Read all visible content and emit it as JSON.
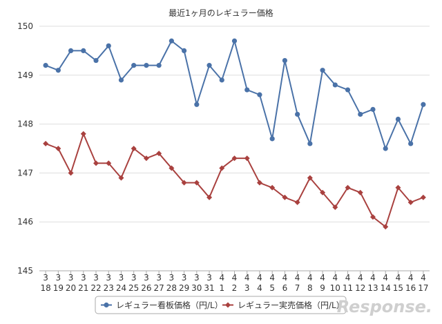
{
  "chart_data": {
    "type": "line",
    "title": "最近1ヶ月のレギュラー価格",
    "categories": [
      [
        "3",
        "18"
      ],
      [
        "3",
        "19"
      ],
      [
        "3",
        "20"
      ],
      [
        "3",
        "21"
      ],
      [
        "3",
        "22"
      ],
      [
        "3",
        "23"
      ],
      [
        "3",
        "24"
      ],
      [
        "3",
        "25"
      ],
      [
        "3",
        "26"
      ],
      [
        "3",
        "27"
      ],
      [
        "3",
        "28"
      ],
      [
        "3",
        "29"
      ],
      [
        "3",
        "30"
      ],
      [
        "3",
        "31"
      ],
      [
        "4",
        "1"
      ],
      [
        "4",
        "2"
      ],
      [
        "4",
        "3"
      ],
      [
        "4",
        "4"
      ],
      [
        "4",
        "5"
      ],
      [
        "4",
        "6"
      ],
      [
        "4",
        "7"
      ],
      [
        "4",
        "8"
      ],
      [
        "4",
        "9"
      ],
      [
        "4",
        "10"
      ],
      [
        "4",
        "11"
      ],
      [
        "4",
        "12"
      ],
      [
        "4",
        "13"
      ],
      [
        "4",
        "14"
      ],
      [
        "4",
        "15"
      ],
      [
        "4",
        "16"
      ],
      [
        "4",
        "17"
      ]
    ],
    "ylim": [
      145,
      150
    ],
    "yticks": [
      145,
      146,
      147,
      148,
      149,
      150
    ],
    "grid": true,
    "legend_position": "bottom",
    "series": [
      {
        "name": "レギュラー看板価格（円/L）",
        "color": "#4a72a8",
        "marker": "circle",
        "values": [
          149.2,
          149.1,
          149.5,
          149.5,
          149.3,
          149.6,
          148.9,
          149.2,
          149.2,
          149.2,
          149.7,
          149.5,
          148.4,
          149.2,
          148.9,
          149.7,
          148.7,
          148.6,
          147.7,
          149.3,
          148.2,
          147.6,
          149.1,
          148.8,
          148.7,
          148.2,
          148.3,
          147.5,
          148.1,
          147.6,
          148.4
        ]
      },
      {
        "name": "レギュラー実売価格（円/L）",
        "color": "#a9413f",
        "marker": "diamond",
        "values": [
          147.6,
          147.5,
          147.0,
          147.8,
          147.2,
          147.2,
          146.9,
          147.5,
          147.3,
          147.4,
          147.1,
          146.8,
          146.8,
          146.5,
          147.1,
          147.3,
          147.3,
          146.8,
          146.7,
          146.5,
          146.4,
          146.9,
          146.6,
          146.3,
          146.7,
          146.6,
          146.1,
          145.9,
          146.7,
          146.4,
          146.5
        ]
      }
    ]
  },
  "watermark": {
    "text": "Response."
  }
}
